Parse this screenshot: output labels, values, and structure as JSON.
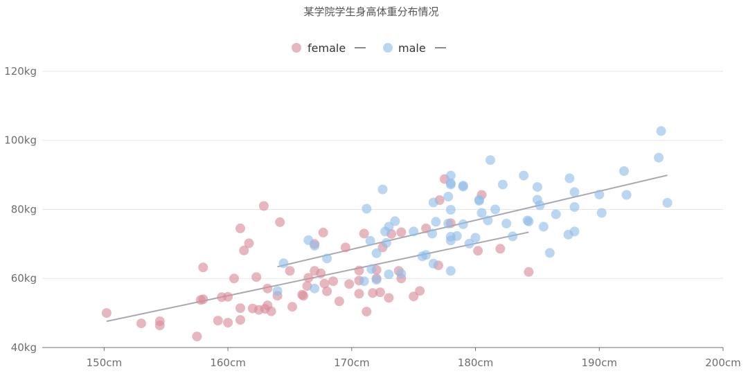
{
  "chart_data": {
    "type": "scatter",
    "title": "某学院学生身高体重分布情况",
    "xlabel": "",
    "ylabel": "",
    "x_unit": "cm",
    "y_unit": "kg",
    "xlim": [
      145,
      200
    ],
    "ylim": [
      40,
      122
    ],
    "x_ticks": [
      150,
      160,
      170,
      180,
      190,
      200
    ],
    "y_ticks": [
      40,
      60,
      80,
      100,
      120
    ],
    "grid": {
      "y": true,
      "x": false
    },
    "legend": {
      "position": "top-center"
    },
    "series": [
      {
        "name": "female",
        "color": "#d98a9a",
        "trend_line": {
          "x": [
            150.2,
            184.3
          ],
          "y": [
            47.6,
            73.4
          ]
        },
        "points": [
          [
            150.2,
            50.0
          ],
          [
            153.0,
            47.0
          ],
          [
            154.5,
            47.6
          ],
          [
            154.5,
            46.4
          ],
          [
            157.5,
            43.2
          ],
          [
            157.8,
            53.8
          ],
          [
            158.0,
            54.0
          ],
          [
            158.0,
            63.2
          ],
          [
            159.2,
            47.8
          ],
          [
            159.5,
            54.6
          ],
          [
            160.0,
            47.2
          ],
          [
            160.0,
            54.7
          ],
          [
            160.5,
            60.0
          ],
          [
            161.0,
            51.4
          ],
          [
            161.0,
            48.0
          ],
          [
            161.0,
            74.5
          ],
          [
            161.3,
            68.1
          ],
          [
            161.7,
            70.2
          ],
          [
            162.0,
            51.3
          ],
          [
            162.3,
            60.4
          ],
          [
            162.5,
            50.9
          ],
          [
            162.9,
            81.0
          ],
          [
            163.0,
            51.2
          ],
          [
            163.2,
            57.1
          ],
          [
            163.2,
            52.2
          ],
          [
            163.5,
            50.5
          ],
          [
            164.0,
            55.0
          ],
          [
            164.2,
            76.3
          ],
          [
            165.0,
            62.2
          ],
          [
            165.2,
            51.8
          ],
          [
            166.0,
            55.3
          ],
          [
            166.1,
            55.0
          ],
          [
            166.4,
            57.8
          ],
          [
            166.5,
            60.2
          ],
          [
            167.0,
            70.0
          ],
          [
            167.0,
            62.2
          ],
          [
            167.5,
            61.5
          ],
          [
            167.7,
            73.3
          ],
          [
            167.8,
            58.5
          ],
          [
            168.0,
            56.3
          ],
          [
            168.5,
            59.2
          ],
          [
            169.0,
            53.4
          ],
          [
            169.5,
            69.0
          ],
          [
            169.8,
            58.4
          ],
          [
            170.6,
            62.3
          ],
          [
            170.6,
            59.4
          ],
          [
            170.6,
            55.6
          ],
          [
            171.0,
            73.0
          ],
          [
            171.2,
            50.4
          ],
          [
            171.7,
            55.8
          ],
          [
            172.0,
            62.5
          ],
          [
            172.0,
            60.0
          ],
          [
            172.3,
            56.0
          ],
          [
            172.5,
            69.0
          ],
          [
            173.0,
            54.4
          ],
          [
            173.2,
            72.9
          ],
          [
            173.8,
            62.2
          ],
          [
            174.0,
            73.4
          ],
          [
            174.0,
            60.0
          ],
          [
            175.0,
            54.8
          ],
          [
            175.5,
            56.4
          ],
          [
            176.0,
            74.5
          ],
          [
            177.0,
            63.8
          ],
          [
            177.1,
            82.7
          ],
          [
            177.5,
            88.8
          ],
          [
            178.0,
            76.0
          ],
          [
            180.2,
            68.0
          ],
          [
            180.5,
            84.2
          ],
          [
            182.0,
            68.6
          ],
          [
            184.3,
            61.9
          ]
        ]
      },
      {
        "name": "male",
        "color": "#8fbde8",
        "trend_line": {
          "x": [
            164.0,
            195.5
          ],
          "y": [
            63.4,
            89.9
          ]
        },
        "points": [
          [
            164.0,
            56.4
          ],
          [
            164.5,
            64.4
          ],
          [
            166.5,
            71.1
          ],
          [
            167.0,
            69.5
          ],
          [
            167.0,
            57.1
          ],
          [
            168.0,
            65.8
          ],
          [
            171.0,
            59.2
          ],
          [
            171.2,
            80.2
          ],
          [
            171.5,
            70.9
          ],
          [
            171.6,
            62.7
          ],
          [
            172.0,
            67.3
          ],
          [
            172.0,
            59.6
          ],
          [
            172.5,
            85.8
          ],
          [
            172.7,
            73.6
          ],
          [
            172.8,
            70.3
          ],
          [
            173.0,
            61.2
          ],
          [
            173.0,
            75.0
          ],
          [
            173.5,
            76.6
          ],
          [
            174.0,
            61.4
          ],
          [
            175.0,
            73.6
          ],
          [
            175.7,
            66.4
          ],
          [
            176.0,
            66.8
          ],
          [
            176.5,
            73.0
          ],
          [
            176.6,
            82.0
          ],
          [
            176.6,
            64.3
          ],
          [
            176.8,
            76.4
          ],
          [
            177.8,
            83.7
          ],
          [
            177.8,
            75.9
          ],
          [
            178.0,
            89.8
          ],
          [
            178.0,
            87.6
          ],
          [
            178.0,
            87.2
          ],
          [
            178.0,
            79.9
          ],
          [
            178.0,
            72.1
          ],
          [
            178.0,
            71.0
          ],
          [
            178.0,
            62.2
          ],
          [
            178.5,
            72.3
          ],
          [
            179.0,
            86.9
          ],
          [
            179.0,
            86.6
          ],
          [
            179.0,
            75.7
          ],
          [
            179.5,
            70.1
          ],
          [
            180.0,
            71.8
          ],
          [
            180.3,
            82.8
          ],
          [
            180.3,
            82.5
          ],
          [
            180.5,
            79.0
          ],
          [
            181.0,
            76.8
          ],
          [
            181.2,
            94.3
          ],
          [
            181.6,
            80.0
          ],
          [
            182.2,
            87.2
          ],
          [
            182.5,
            75.9
          ],
          [
            183.0,
            72.2
          ],
          [
            183.9,
            89.8
          ],
          [
            184.2,
            76.8
          ],
          [
            184.3,
            76.5
          ],
          [
            185.0,
            86.5
          ],
          [
            185.0,
            82.8
          ],
          [
            185.2,
            81.2
          ],
          [
            185.5,
            75.0
          ],
          [
            186.0,
            67.4
          ],
          [
            186.5,
            78.6
          ],
          [
            187.5,
            72.7
          ],
          [
            187.6,
            89.0
          ],
          [
            188.0,
            85.0
          ],
          [
            188.0,
            80.7
          ],
          [
            188.0,
            73.6
          ],
          [
            190.0,
            84.3
          ],
          [
            190.2,
            79.0
          ],
          [
            192.0,
            91.1
          ],
          [
            192.2,
            84.2
          ],
          [
            194.8,
            95.0
          ],
          [
            195.0,
            102.7
          ],
          [
            195.5,
            81.9
          ]
        ]
      }
    ]
  }
}
